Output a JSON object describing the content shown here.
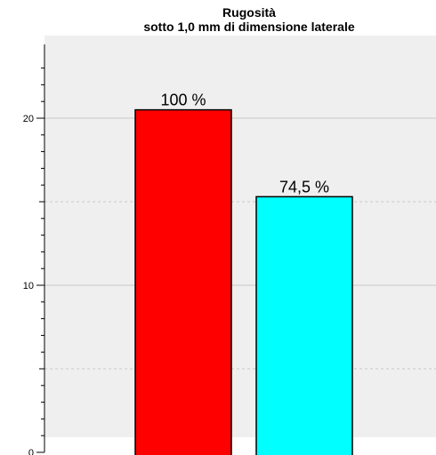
{
  "chart_data": {
    "type": "bar",
    "title": "Rugosità",
    "subtitle": "sotto 1,0 mm di dimensione laterale",
    "xlabel": "",
    "ylabel": "",
    "categories": [
      "",
      ""
    ],
    "values": [
      20.5,
      15.3
    ],
    "data_labels": [
      "100 %",
      "74,5 %"
    ],
    "colors": [
      "#ff0000",
      "#00ffff"
    ],
    "ylim": [
      0,
      23.5
    ],
    "yticks_major": [
      0,
      10,
      20
    ],
    "yticks_major_labels": [
      "0",
      "10",
      "20"
    ],
    "yminor_step": 1,
    "grid": true,
    "gridlines": [
      5,
      10,
      15,
      20
    ],
    "plot_background": "#efefef",
    "legend": "none"
  }
}
